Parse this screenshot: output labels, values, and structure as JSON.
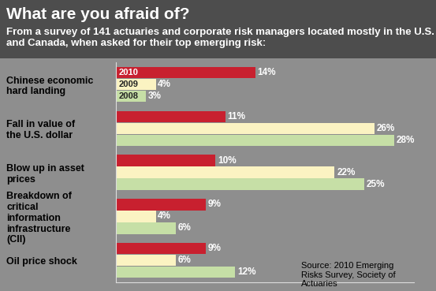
{
  "chart_data": {
    "type": "bar",
    "orientation": "horizontal",
    "title": "What are you afraid of?",
    "subtitle": "From a survey of 141 actuaries and corporate risk managers located mostly in the U.S. and Canada, when asked for their top emerging risk:",
    "categories": [
      "Chinese economic hard landing",
      "Fall in value of the U.S. dollar",
      "Blow up in asset prices",
      "Breakdown of critical information infrastructure (CII)",
      "Oil price shock"
    ],
    "series": [
      {
        "name": "2010",
        "color": "#c8202f",
        "values": [
          14,
          11,
          10,
          9,
          9
        ],
        "value_labels": [
          "14%",
          "11%",
          "10%",
          "9%",
          "9%"
        ]
      },
      {
        "name": "2009",
        "color": "#fbf3c2",
        "values": [
          4,
          26,
          22,
          4,
          6
        ],
        "value_labels": [
          "4%",
          "26%",
          "22%",
          "4%",
          "6%"
        ]
      },
      {
        "name": "2008",
        "color": "#c6dfa6",
        "values": [
          3,
          28,
          25,
          6,
          12
        ],
        "value_labels": [
          "3%",
          "28%",
          "25%",
          "6%",
          "12%"
        ]
      }
    ],
    "xlim": [
      0,
      30
    ],
    "data_labels": true,
    "tick_labels": "y",
    "annotations": [
      "Source: 2010 Emerging Risks Survey, Society of Actuaries"
    ]
  }
}
